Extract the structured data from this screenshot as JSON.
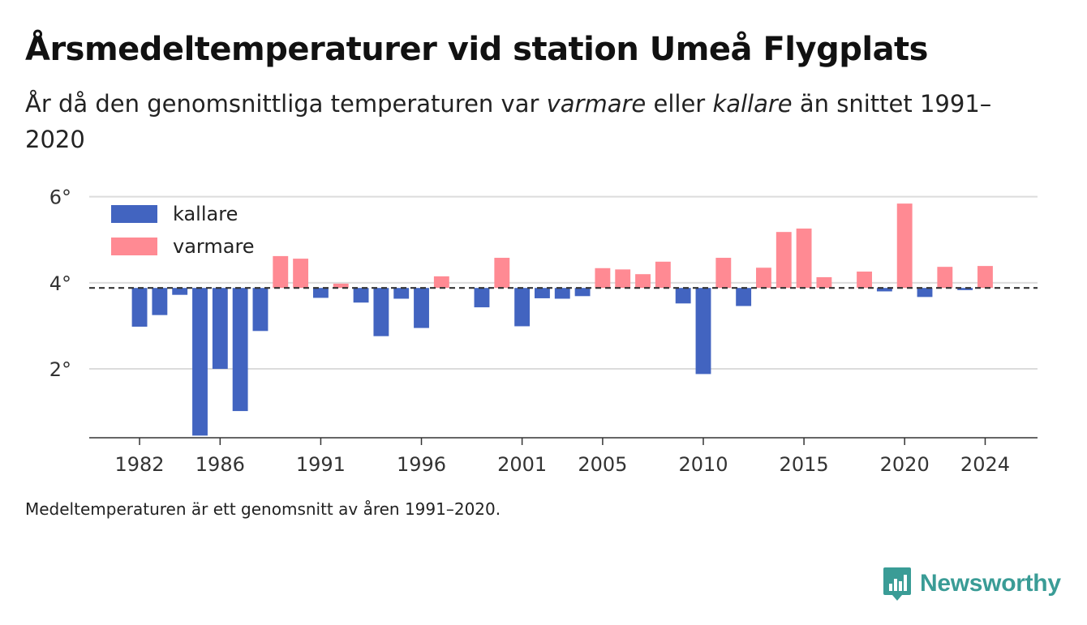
{
  "title": "Årsmedeltemperaturer vid station Umeå Flygplats",
  "subtitle": {
    "part1": "År då den genomsnittliga temperaturen var ",
    "varmare": "varmare",
    "part2": " eller ",
    "kallare": "kallare",
    "part3": " än snittet 1991–2020"
  },
  "footnote": "Medeltemperaturen är ett genomsnitt av åren 1991–2020.",
  "brand": {
    "name": "Newsworthy",
    "color": "#3a9c96"
  },
  "chart_data": {
    "type": "bar",
    "baseline": 3.88,
    "ylim": [
      0.4,
      6.2
    ],
    "xlim": [
      1979.5,
      2026.6
    ],
    "yticks": [
      {
        "value": 2,
        "label": "2°"
      },
      {
        "value": 4,
        "label": "4°"
      },
      {
        "value": 6,
        "label": "6°"
      }
    ],
    "xticks": [
      {
        "value": 1982,
        "label": "1982"
      },
      {
        "value": 1986,
        "label": "1986"
      },
      {
        "value": 1991,
        "label": "1991"
      },
      {
        "value": 1996,
        "label": "1996"
      },
      {
        "value": 2001,
        "label": "2001"
      },
      {
        "value": 2005,
        "label": "2005"
      },
      {
        "value": 2010,
        "label": "2010"
      },
      {
        "value": 2015,
        "label": "2015"
      },
      {
        "value": 2020,
        "label": "2020"
      },
      {
        "value": 2024,
        "label": "2024"
      }
    ],
    "grid": true,
    "legend_position": "top-left",
    "legend": [
      {
        "key": "kallare",
        "label": "kallare",
        "color": "#4264c0"
      },
      {
        "key": "varmare",
        "label": "varmare",
        "color": "#ff8a93"
      }
    ],
    "years": [
      1982,
      1983,
      1984,
      1985,
      1986,
      1987,
      1988,
      1989,
      1990,
      1991,
      1992,
      1993,
      1994,
      1995,
      1996,
      1997,
      1998,
      1999,
      2000,
      2001,
      2002,
      2003,
      2004,
      2005,
      2006,
      2007,
      2008,
      2009,
      2010,
      2011,
      2012,
      2013,
      2014,
      2015,
      2016,
      2017,
      2018,
      2019,
      2020,
      2021,
      2022,
      2023,
      2024
    ],
    "values": [
      2.98,
      3.25,
      3.72,
      0.45,
      2.0,
      1.02,
      2.88,
      4.62,
      4.56,
      3.65,
      3.98,
      3.54,
      2.76,
      3.63,
      2.95,
      4.15,
      null,
      3.43,
      4.58,
      2.99,
      3.64,
      3.63,
      3.69,
      4.34,
      4.31,
      4.2,
      4.49,
      3.52,
      1.88,
      4.58,
      3.46,
      4.35,
      5.18,
      5.26,
      4.13,
      null,
      4.26,
      3.8,
      5.84,
      3.67,
      4.37,
      3.83,
      4.39
    ]
  }
}
